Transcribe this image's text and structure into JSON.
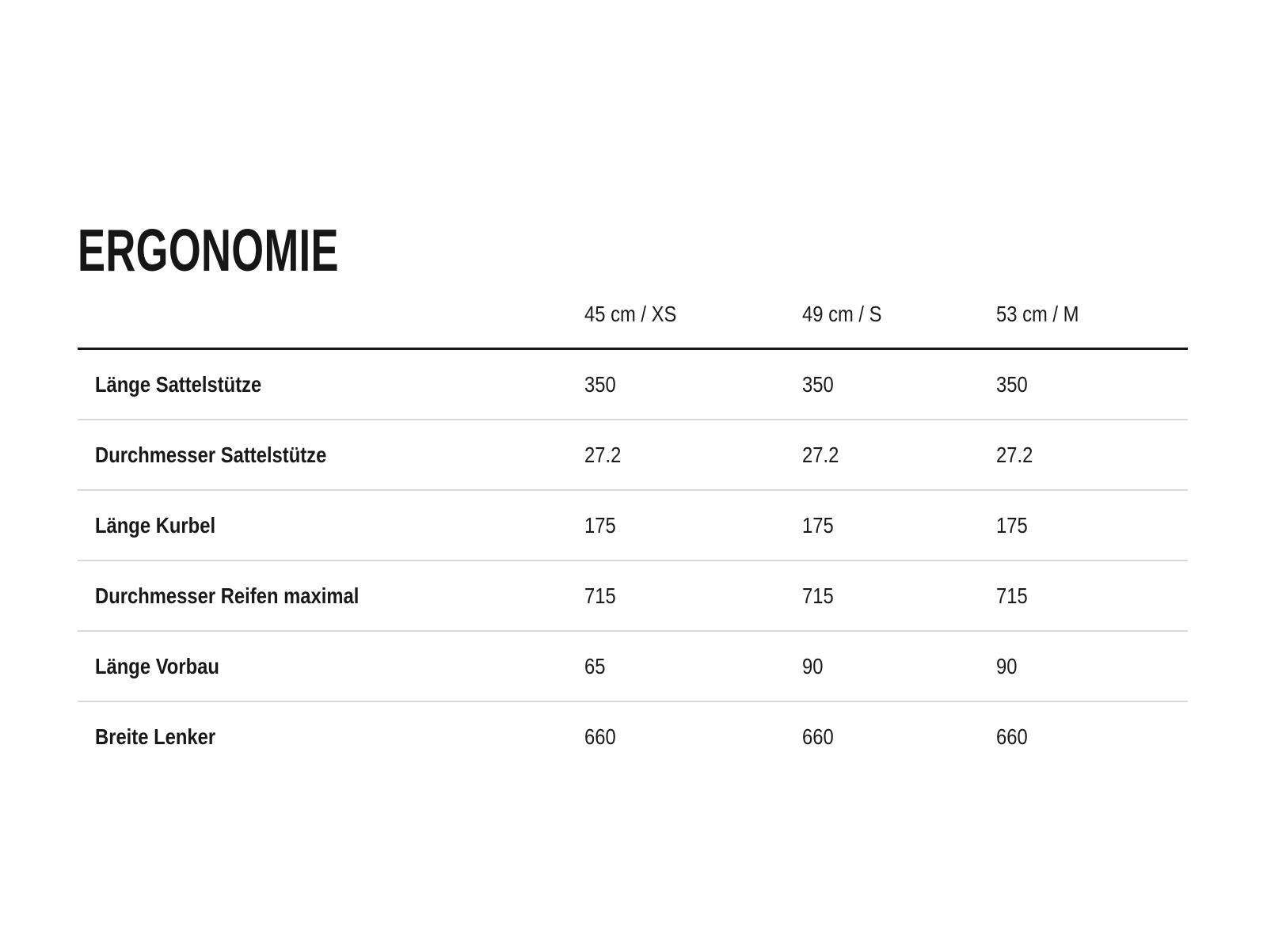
{
  "page": {
    "title": "ERGONOMIE"
  },
  "table": {
    "columns": [
      "45 cm / XS",
      "49 cm / S",
      "53 cm / M"
    ],
    "rows": [
      {
        "label": "Länge Sattelstütze",
        "values": [
          "350",
          "350",
          "350"
        ]
      },
      {
        "label": "Durchmesser Sattelstütze",
        "values": [
          "27.2",
          "27.2",
          "27.2"
        ]
      },
      {
        "label": "Länge Kurbel",
        "values": [
          "175",
          "175",
          "175"
        ]
      },
      {
        "label": "Durchmesser Reifen maximal",
        "values": [
          "715",
          "715",
          "715"
        ]
      },
      {
        "label": "Länge Vorbau",
        "values": [
          "65",
          "90",
          "90"
        ]
      },
      {
        "label": "Breite Lenker",
        "values": [
          "660",
          "660",
          "660"
        ]
      }
    ]
  },
  "colors": {
    "text": "#1b1b1b",
    "header_rule": "#191919",
    "row_rule": "#d7dadb",
    "background": "#ffffff"
  }
}
